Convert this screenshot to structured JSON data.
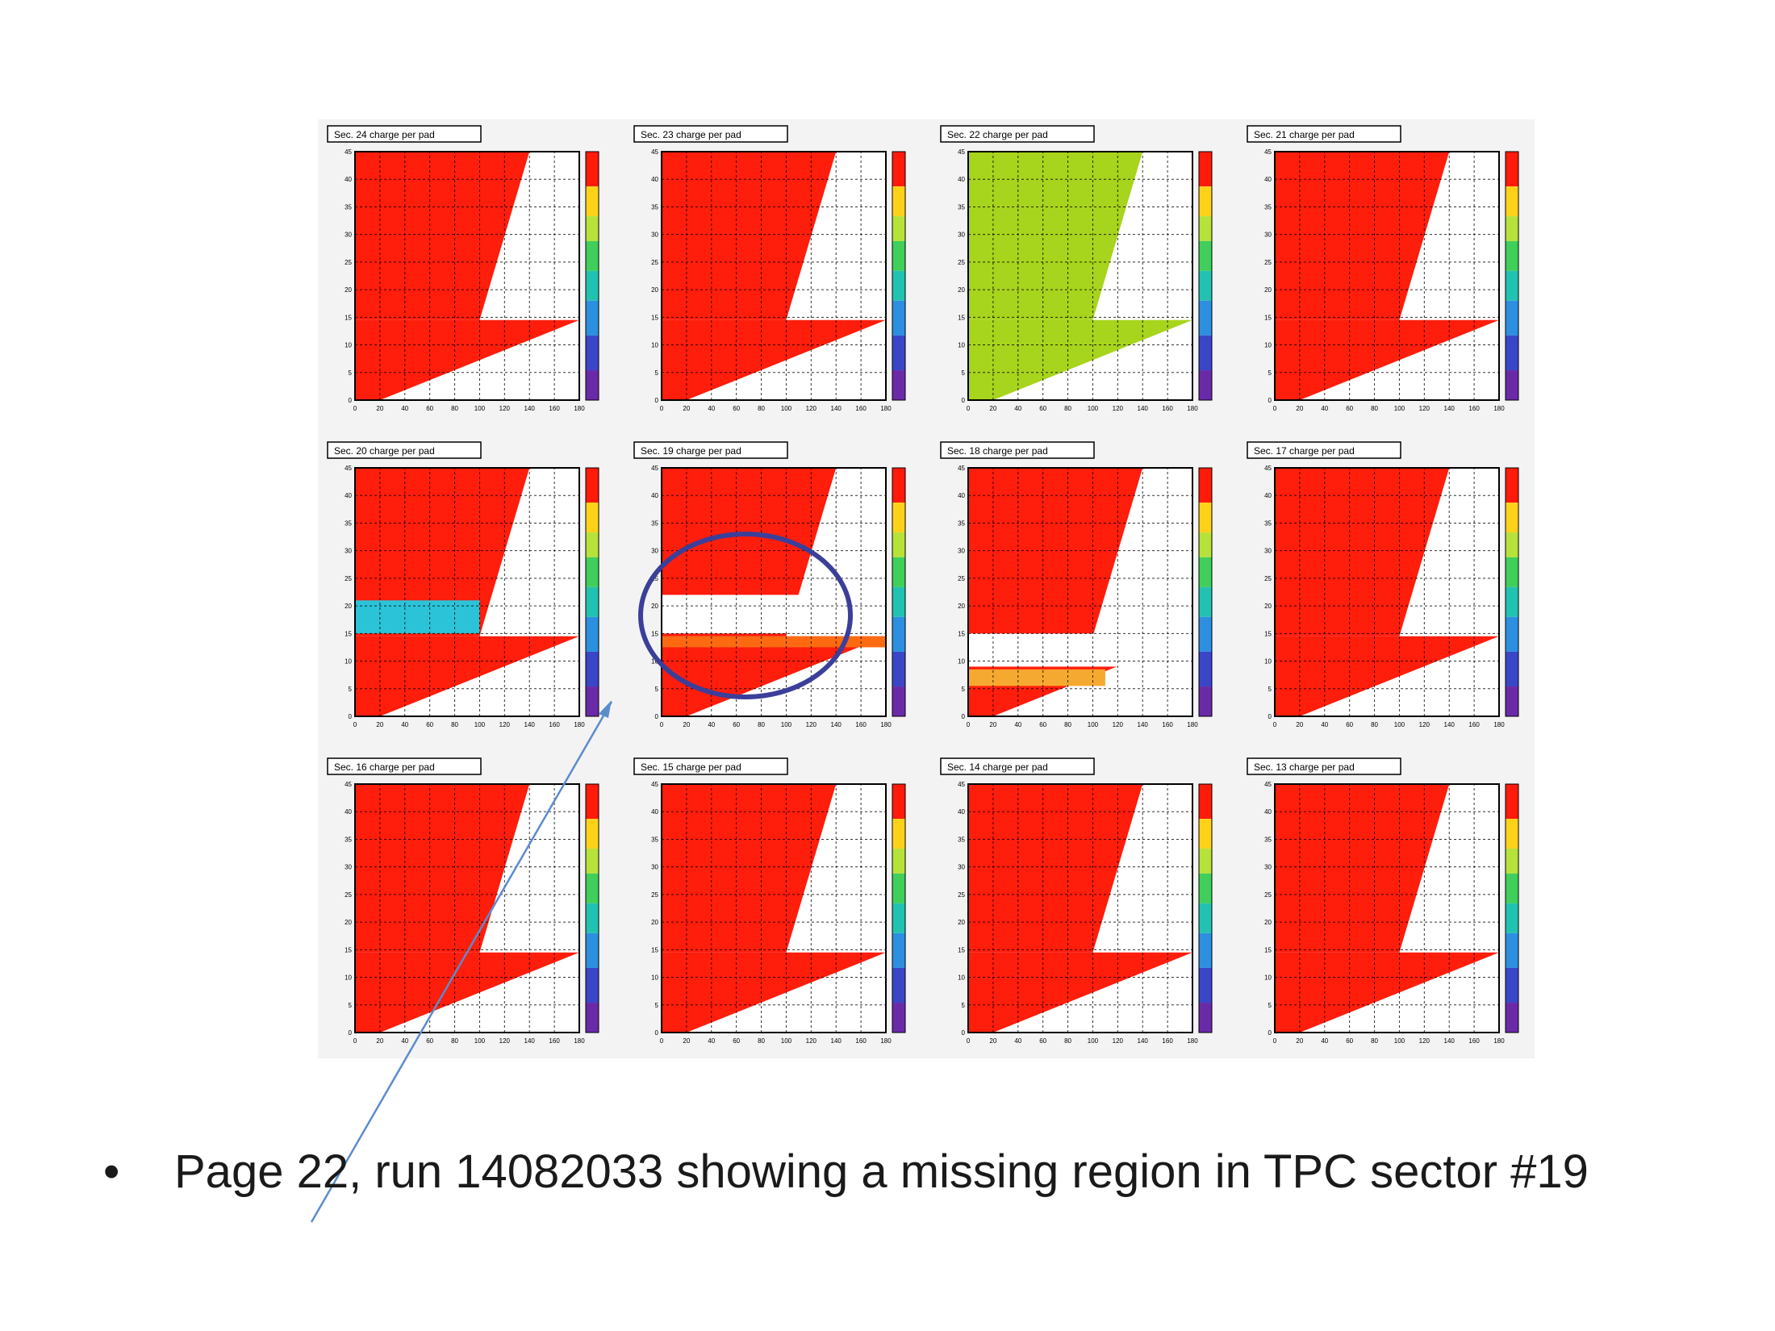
{
  "slide": {
    "bullet_char": "•",
    "bullet_text": "Page 22, run 14082033 showing a missing region in TPC sector #19"
  },
  "colors": {
    "red": "#ff1d0c",
    "green_yellow": "#a7d41c",
    "cyan": "#2bc3d8",
    "orange": "#fd6a12",
    "light_orange": "#f6a930",
    "annotation_blue": "#3b3f9a",
    "arrow_blue": "#5b8ccc"
  },
  "chart_data": {
    "type": "heatmap",
    "panel_count": 12,
    "xlim": [
      0,
      180
    ],
    "ylim": [
      0,
      45
    ],
    "x_ticks": [
      0,
      20,
      40,
      60,
      80,
      100,
      120,
      140,
      160,
      180
    ],
    "y_ticks": [
      0,
      5,
      10,
      15,
      20,
      25,
      30,
      35,
      40,
      45
    ],
    "grid": true,
    "colorbar": true,
    "panels": [
      {
        "title": "Sec. 24 charge per pad",
        "state": "normal"
      },
      {
        "title": "Sec. 23 charge per pad",
        "state": "normal"
      },
      {
        "title": "Sec. 22 charge per pad",
        "state": "low_gain"
      },
      {
        "title": "Sec. 21 charge per pad",
        "state": "normal"
      },
      {
        "title": "Sec. 20 charge per pad",
        "state": "partial_low",
        "low_band": [
          15,
          21
        ]
      },
      {
        "title": "Sec. 19 charge per pad",
        "state": "missing_region",
        "missing_band": [
          15,
          22
        ],
        "highlighted": true
      },
      {
        "title": "Sec. 18 charge per pad",
        "state": "missing_region",
        "missing_band": [
          9,
          15
        ]
      },
      {
        "title": "Sec. 17 charge per pad",
        "state": "normal"
      },
      {
        "title": "Sec. 16 charge per pad",
        "state": "normal"
      },
      {
        "title": "Sec. 15 charge per pad",
        "state": "normal"
      },
      {
        "title": "Sec. 14 charge per pad",
        "state": "normal"
      },
      {
        "title": "Sec. 13 charge per pad",
        "state": "normal"
      }
    ]
  }
}
